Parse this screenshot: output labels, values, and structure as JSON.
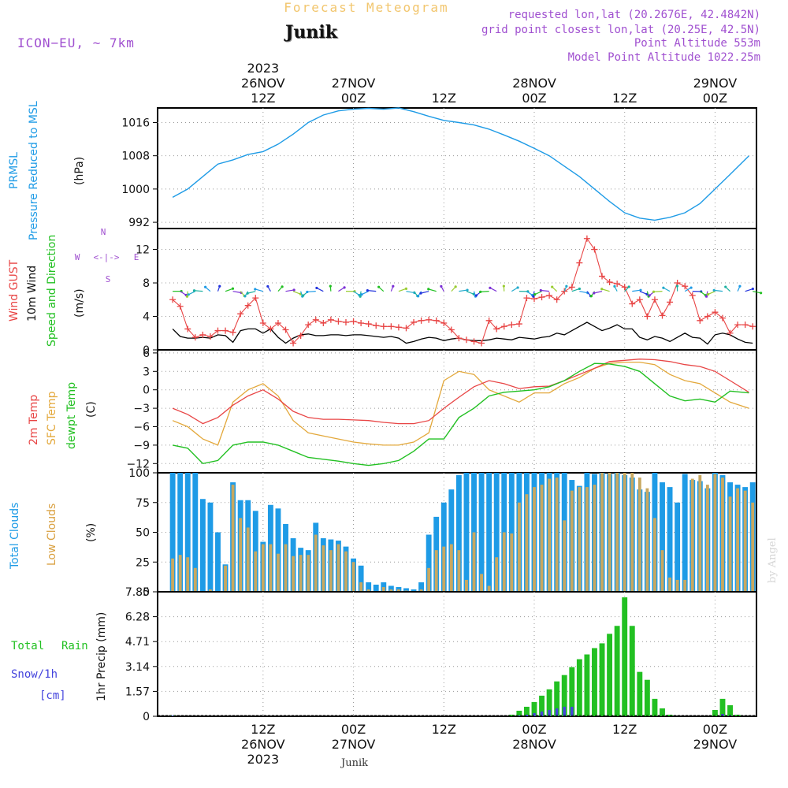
{
  "header": {
    "product_title": "Forecast Meteogram",
    "location": "Junik",
    "model": "ICON−EU, ~ 7km",
    "requested": "requested lon,lat (20.2676E, 42.4842N)",
    "grid_point": "grid point closest lon,lat (20.25E, 42.5N)",
    "point_altitude": "Point Altitude 553m",
    "model_altitude": "Model Point Altitude 1022.25m"
  },
  "footer": {
    "location": "Junik",
    "watermark": "by Angel"
  },
  "colors": {
    "pressure": "#1e9be6",
    "gust": "#e84545",
    "wind": "#000000",
    "temp": "#e84545",
    "sfc": "#e3a83b",
    "dewpt": "#22c022",
    "total_clouds": "#1e9be6",
    "low_clouds": "#c8a860",
    "rain": "#22c022",
    "snow": "#4444dd",
    "purple": "#a050d0"
  },
  "time_axis": {
    "hours_start": 0,
    "hours_end": 64,
    "hour_step": 1,
    "hour_0_label": "26NOV 00Z is hour 0",
    "ticks_top": [
      {
        "hour": 12,
        "lines": [
          "2023",
          "26NOV",
          "12Z"
        ]
      },
      {
        "hour": 24,
        "lines": [
          "27NOV",
          "00Z"
        ]
      },
      {
        "hour": 36,
        "lines": [
          "12Z"
        ]
      },
      {
        "hour": 48,
        "lines": [
          "28NOV",
          "00Z"
        ]
      },
      {
        "hour": 60,
        "lines": [
          "12Z"
        ]
      },
      {
        "hour": 72,
        "lines": [
          "29NOV",
          "00Z"
        ]
      }
    ],
    "ticks_bottom": [
      {
        "hour": 12,
        "lines": [
          "12Z",
          "26NOV",
          "2023"
        ]
      },
      {
        "hour": 24,
        "lines": [
          "00Z",
          "27NOV"
        ]
      },
      {
        "hour": 36,
        "lines": [
          "12Z"
        ]
      },
      {
        "hour": 48,
        "lines": [
          "00Z",
          "28NOV"
        ]
      },
      {
        "hour": 60,
        "lines": [
          "12Z"
        ]
      },
      {
        "hour": 72,
        "lines": [
          "00Z",
          "29NOV"
        ]
      }
    ],
    "first_hour": 0.0,
    "last_hour": 76.8
  },
  "panel_labels": {
    "pressure": [
      "PRMSL",
      "Pressure Reduced to MSL",
      "(hPa)"
    ],
    "wind": [
      "Wind GUST",
      "10m Wind",
      "Speed and Direction",
      "(m/s)"
    ],
    "compass": [
      "N",
      "W",
      "E",
      "S"
    ],
    "temp": [
      "2m Temp",
      "SFC Temp",
      "dewpt Temp",
      "(C)"
    ],
    "clouds": [
      "Total Clouds",
      "Low Clouds",
      "(%)"
    ],
    "precip": [
      "Total",
      "Rain",
      "Snow/1h",
      "[cm]",
      "1hr Precip (mm)"
    ]
  },
  "chart_data": [
    {
      "type": "line",
      "title": "Pressure Reduced to MSL",
      "ylabel": "hPa",
      "ylim": [
        990.5,
        1019.5
      ],
      "yticks": [
        992,
        1000,
        1008,
        1016
      ],
      "x": [
        0,
        2,
        4,
        6,
        8,
        10,
        12,
        14,
        16,
        18,
        20,
        22,
        24,
        26,
        28,
        30,
        32,
        34,
        36,
        38,
        40,
        42,
        44,
        46,
        48,
        50,
        52,
        54,
        56,
        58,
        60,
        62,
        64,
        66,
        68,
        70,
        72,
        74,
        76.5
      ],
      "series": [
        {
          "name": "PRMSL",
          "values": [
            998,
            1000,
            1003,
            1006,
            1007,
            1008.3,
            1009,
            1010.8,
            1013.2,
            1016,
            1017.8,
            1018.8,
            1019.2,
            1019.4,
            1019.2,
            1019.5,
            1018.6,
            1017.5,
            1016.5,
            1016,
            1015.4,
            1014.4,
            1013,
            1011.5,
            1009.8,
            1008,
            1005.5,
            1003,
            1000,
            997,
            994.3,
            993,
            992.5,
            993.2,
            994.3,
            996.5,
            1000,
            1003.5,
            1008
          ]
        }
      ]
    },
    {
      "type": "line",
      "title": "Wind GUST / 10m Wind Speed and Direction",
      "ylabel": "m/s",
      "ylim": [
        0,
        14.5
      ],
      "yticks": [
        0,
        4,
        8,
        12
      ],
      "x": [
        0,
        1,
        2,
        3,
        4,
        5,
        6,
        7,
        8,
        9,
        10,
        11,
        12,
        13,
        14,
        15,
        16,
        17,
        18,
        19,
        20,
        21,
        22,
        23,
        24,
        25,
        26,
        27,
        28,
        29,
        30,
        31,
        32,
        33,
        34,
        35,
        36,
        37,
        38,
        39,
        40,
        41,
        42,
        43,
        44,
        45,
        46,
        47,
        48,
        49,
        50,
        51,
        52,
        53,
        54,
        55,
        56,
        57,
        58,
        59,
        60,
        61,
        62,
        63,
        64,
        65,
        66,
        67,
        68,
        69,
        70,
        71,
        72,
        73,
        74,
        75,
        76,
        77
      ],
      "series": [
        {
          "name": "Wind GUST",
          "values": [
            6,
            5.2,
            2.5,
            1.5,
            1.8,
            1.6,
            2.3,
            2.3,
            2.1,
            4.3,
            5.3,
            6.2,
            3.2,
            2.5,
            3.2,
            2.4,
            0.8,
            1.7,
            3,
            3.6,
            3.2,
            3.6,
            3.4,
            3.3,
            3.4,
            3.2,
            3.1,
            2.9,
            2.8,
            2.8,
            2.7,
            2.6,
            3.3,
            3.5,
            3.6,
            3.5,
            3.2,
            2.4,
            1.4,
            1.2,
            1,
            0.8,
            3.5,
            2.5,
            2.8,
            3,
            3.1,
            6.2,
            6.1,
            6.3,
            6.5,
            6,
            7,
            7.5,
            10.4,
            13.3,
            12,
            8.8,
            8.1,
            7.9,
            7.5,
            5.5,
            6,
            4,
            6,
            4.1,
            5.7,
            8,
            7.6,
            6.5,
            3.5,
            4,
            4.5,
            3.8,
            2,
            3,
            3,
            2.8
          ]
        },
        {
          "name": "10m Wind",
          "values": [
            2.5,
            1.6,
            1.4,
            1.4,
            1.5,
            1.4,
            1.8,
            1.7,
            0.9,
            2.3,
            2.5,
            2.5,
            2,
            2.5,
            1.5,
            0.8,
            1.4,
            1.8,
            1.9,
            1.7,
            1.7,
            1.8,
            1.8,
            1.7,
            1.8,
            1.8,
            1.7,
            1.6,
            1.5,
            1.6,
            1.4,
            0.8,
            1,
            1.3,
            1.5,
            1.4,
            1.1,
            1.3,
            1.4,
            1.2,
            1.1,
            1.1,
            1.2,
            1.4,
            1.3,
            1.2,
            1.5,
            1.4,
            1.3,
            1.5,
            1.6,
            2,
            1.8,
            2.3,
            2.8,
            3.3,
            2.8,
            2.3,
            2.6,
            3,
            2.5,
            2.5,
            1.5,
            1.2,
            1.6,
            1.4,
            1,
            1.5,
            2,
            1.5,
            1.4,
            0.7,
            1.8,
            2,
            1.8,
            1.3,
            0.9,
            0.8
          ]
        }
      ]
    },
    {
      "type": "line",
      "title": "2m Temp / SFC Temp / dewpt Temp",
      "ylabel": "C",
      "ylim": [
        -13.5,
        6.5
      ],
      "yticks": [
        -12,
        -9,
        -6,
        -3,
        0,
        3,
        6
      ],
      "x": [
        0,
        2,
        4,
        6,
        8,
        10,
        12,
        14,
        16,
        18,
        20,
        22,
        24,
        26,
        28,
        30,
        32,
        34,
        36,
        38,
        40,
        42,
        44,
        46,
        48,
        50,
        52,
        54,
        56,
        58,
        60,
        62,
        64,
        66,
        68,
        70,
        72,
        74,
        76.5
      ],
      "series": [
        {
          "name": "2m Temp",
          "values": [
            -3,
            -4,
            -5.5,
            -4.5,
            -2.5,
            -1,
            0,
            -1.5,
            -3.5,
            -4.5,
            -4.8,
            -4.8,
            -4.9,
            -5,
            -5.3,
            -5.5,
            -5.5,
            -5,
            -3,
            -1.2,
            0.5,
            1.5,
            1,
            0.2,
            0.5,
            0.6,
            1.5,
            2.5,
            3.5,
            4.6,
            4.8,
            5,
            4.9,
            4.6,
            4.1,
            3.8,
            3,
            1.5,
            -0.4
          ]
        },
        {
          "name": "SFC Temp",
          "values": [
            -5,
            -6,
            -8,
            -9,
            -2,
            0,
            1,
            -1,
            -5,
            -7,
            -7.5,
            -8,
            -8.5,
            -8.8,
            -9,
            -9,
            -8.5,
            -7,
            1.5,
            3,
            2.5,
            0,
            -1,
            -2,
            -0.5,
            -0.5,
            1,
            2,
            3.5,
            4.3,
            4.5,
            4.5,
            4.1,
            2.5,
            1.5,
            1,
            -0.5,
            -2,
            -3
          ]
        },
        {
          "name": "dewpt Temp",
          "values": [
            -9,
            -9.5,
            -12,
            -11.5,
            -9,
            -8.5,
            -8.5,
            -9,
            -10,
            -11,
            -11.3,
            -11.6,
            -12,
            -12.3,
            -12,
            -11.5,
            -10,
            -8,
            -8,
            -4.5,
            -3,
            -1,
            -0.4,
            -0.2,
            0,
            0.5,
            1.5,
            3,
            4.3,
            4.2,
            3.8,
            3,
            1,
            -1,
            -1.8,
            -1.5,
            -2,
            -0.2,
            -0.5
          ]
        }
      ]
    },
    {
      "type": "bar",
      "title": "Total Clouds / Low Clouds",
      "ylabel": "%",
      "ylim": [
        0,
        100
      ],
      "yticks": [
        0,
        25,
        50,
        75,
        100
      ],
      "x": [
        0,
        1,
        2,
        3,
        4,
        5,
        6,
        7,
        8,
        9,
        10,
        11,
        12,
        13,
        14,
        15,
        16,
        17,
        18,
        19,
        20,
        21,
        22,
        23,
        24,
        25,
        26,
        27,
        28,
        29,
        30,
        31,
        32,
        33,
        34,
        35,
        36,
        37,
        38,
        39,
        40,
        41,
        42,
        43,
        44,
        45,
        46,
        47,
        48,
        49,
        50,
        51,
        52,
        53,
        54,
        55,
        56,
        57,
        58,
        59,
        60,
        61,
        62,
        63,
        64,
        65,
        66,
        67,
        68,
        69,
        70,
        71,
        72,
        73,
        74,
        75,
        76,
        77
      ],
      "series": [
        {
          "name": "Total Clouds",
          "values": [
            100,
            100,
            100,
            100,
            78,
            75,
            50,
            23,
            92,
            77,
            77,
            68,
            42,
            73,
            70,
            57,
            45,
            37,
            35,
            58,
            45,
            44,
            43,
            38,
            28,
            22,
            8,
            6,
            8,
            5,
            4,
            3,
            2,
            8,
            48,
            63,
            75,
            86,
            98,
            100,
            100,
            100,
            100,
            100,
            100,
            100,
            100,
            100,
            100,
            100,
            100,
            100,
            100,
            94,
            89,
            100,
            99,
            100,
            99,
            100,
            98,
            96,
            86,
            84,
            100,
            92,
            88,
            75,
            99,
            94,
            93,
            87,
            100,
            98,
            92,
            90,
            88,
            92
          ]
        },
        {
          "name": "Low Clouds",
          "values": [
            28,
            31,
            29,
            20,
            0,
            2,
            0,
            22,
            90,
            62,
            54,
            34,
            40,
            40,
            32,
            40,
            30,
            31,
            31,
            48,
            39,
            35,
            40,
            34,
            25,
            8,
            2,
            0,
            4,
            2,
            2,
            1,
            0,
            2,
            20,
            35,
            38,
            40,
            35,
            10,
            50,
            15,
            5,
            29,
            50,
            49,
            75,
            82,
            88,
            90,
            95,
            96,
            60,
            85,
            88,
            88,
            90,
            100,
            100,
            100,
            100,
            100,
            96,
            87,
            62,
            35,
            12,
            10,
            10,
            95,
            98,
            90,
            99,
            96,
            80,
            87,
            85,
            75
          ]
        }
      ]
    },
    {
      "type": "bar",
      "title": "1hr Precip (mm)",
      "ylabel": "1hr Precip (mm)",
      "ylim": [
        0,
        7.85
      ],
      "yticks": [
        0,
        1.57,
        3.14,
        4.71,
        6.28,
        7.85
      ],
      "x": [
        0,
        1,
        2,
        3,
        4,
        5,
        6,
        7,
        8,
        9,
        10,
        11,
        12,
        13,
        14,
        15,
        16,
        17,
        18,
        19,
        20,
        21,
        22,
        23,
        24,
        25,
        26,
        27,
        28,
        29,
        30,
        31,
        32,
        33,
        34,
        35,
        36,
        37,
        38,
        39,
        40,
        41,
        42,
        43,
        44,
        45,
        46,
        47,
        48,
        49,
        50,
        51,
        52,
        53,
        54,
        55,
        56,
        57,
        58,
        59,
        60,
        61,
        62,
        63,
        64,
        65,
        66,
        67,
        68,
        69,
        70,
        71,
        72,
        73,
        74,
        75,
        76,
        77
      ],
      "series": [
        {
          "name": "Total Rain",
          "values": [
            0.05,
            0,
            0,
            0,
            0,
            0,
            0,
            0,
            0,
            0,
            0,
            0,
            0,
            0,
            0,
            0,
            0,
            0,
            0,
            0,
            0,
            0,
            0,
            0,
            0,
            0,
            0,
            0,
            0,
            0,
            0,
            0,
            0,
            0,
            0,
            0,
            0,
            0,
            0,
            0,
            0,
            0,
            0,
            0,
            0,
            0.1,
            0.35,
            0.6,
            0.9,
            1.3,
            1.7,
            2.2,
            2.6,
            3.1,
            3.6,
            3.9,
            4.3,
            4.6,
            5.2,
            5.7,
            7.5,
            5.7,
            2.8,
            2.3,
            1.1,
            0.5,
            0.1,
            0,
            0,
            0,
            0,
            0,
            0.4,
            1.1,
            0.7,
            0.1,
            0,
            0
          ]
        },
        {
          "name": "Snow/1h",
          "values": [
            0.04,
            0,
            0,
            0,
            0,
            0,
            0,
            0,
            0,
            0,
            0,
            0,
            0,
            0,
            0,
            0,
            0,
            0,
            0,
            0,
            0,
            0,
            0,
            0,
            0,
            0,
            0,
            0,
            0,
            0,
            0,
            0,
            0,
            0,
            0,
            0,
            0,
            0,
            0,
            0,
            0,
            0,
            0,
            0,
            0,
            0,
            0.05,
            0.1,
            0.2,
            0.3,
            0.4,
            0.5,
            0.6,
            0.6,
            0,
            0,
            0,
            0,
            0,
            0,
            0,
            0,
            0,
            0,
            0,
            0,
            0,
            0,
            0,
            0,
            0,
            0,
            0,
            0.15,
            0.05,
            0,
            0,
            0
          ]
        }
      ]
    }
  ]
}
